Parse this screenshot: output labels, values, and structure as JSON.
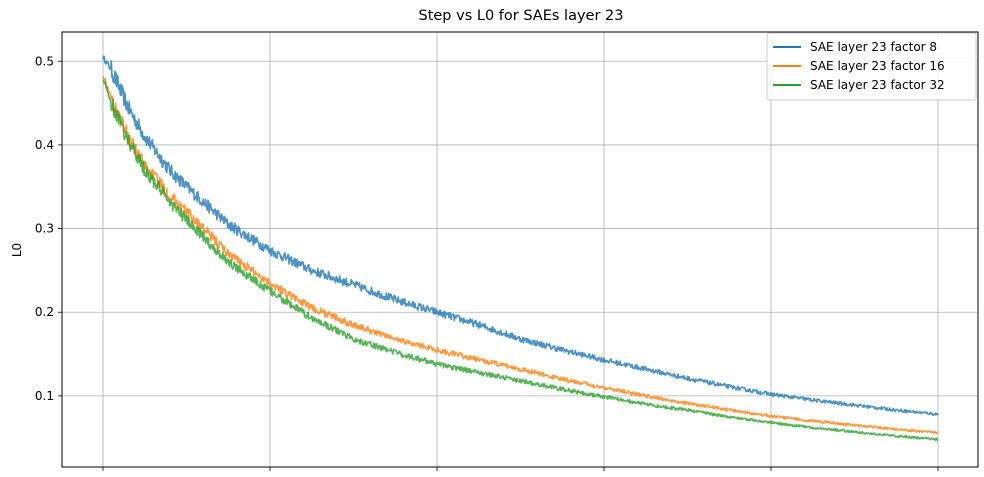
{
  "chart_data": {
    "type": "line",
    "title": "Step vs L0 for SAEs layer 23",
    "xlabel": "",
    "ylabel": "L0",
    "x_range": [
      0,
      1
    ],
    "ylim": [
      0.015,
      0.535
    ],
    "yticks": [
      0.1,
      0.2,
      0.3,
      0.4,
      0.5
    ],
    "ytick_labels": [
      "0.1",
      "0.2",
      "0.3",
      "0.4",
      "0.5"
    ],
    "xticks": [
      0,
      0.2,
      0.4,
      0.6,
      0.8,
      1.0
    ],
    "xtick_labels": [
      "",
      "",
      "",
      "",
      "",
      ""
    ],
    "grid": true,
    "legend_position": "top-right",
    "series": [
      {
        "name": "SAE layer 23 factor 8",
        "color": "#1f77b4",
        "x": [
          0,
          0.01,
          0.03,
          0.05,
          0.08,
          0.1,
          0.15,
          0.2,
          0.25,
          0.3,
          0.35,
          0.4,
          0.45,
          0.5,
          0.55,
          0.6,
          0.65,
          0.7,
          0.75,
          0.8,
          0.85,
          0.9,
          0.95,
          1.0
        ],
        "values": [
          0.505,
          0.49,
          0.445,
          0.41,
          0.37,
          0.35,
          0.305,
          0.274,
          0.25,
          0.233,
          0.215,
          0.2,
          0.185,
          0.168,
          0.155,
          0.143,
          0.132,
          0.121,
          0.111,
          0.102,
          0.095,
          0.089,
          0.083,
          0.078
        ]
      },
      {
        "name": "SAE layer 23 factor 16",
        "color": "#ff7f0e",
        "x": [
          0,
          0.01,
          0.03,
          0.05,
          0.08,
          0.1,
          0.15,
          0.2,
          0.25,
          0.3,
          0.35,
          0.4,
          0.45,
          0.5,
          0.55,
          0.6,
          0.65,
          0.7,
          0.75,
          0.8,
          0.85,
          0.9,
          0.95,
          1.0
        ],
        "values": [
          0.485,
          0.455,
          0.41,
          0.375,
          0.34,
          0.32,
          0.27,
          0.235,
          0.205,
          0.185,
          0.168,
          0.155,
          0.143,
          0.132,
          0.12,
          0.11,
          0.1,
          0.091,
          0.083,
          0.076,
          0.07,
          0.065,
          0.06,
          0.056
        ]
      },
      {
        "name": "SAE layer 23 factor 32",
        "color": "#2ca02c",
        "x": [
          0,
          0.01,
          0.03,
          0.05,
          0.08,
          0.1,
          0.15,
          0.2,
          0.25,
          0.3,
          0.35,
          0.4,
          0.45,
          0.5,
          0.55,
          0.6,
          0.65,
          0.7,
          0.75,
          0.8,
          0.85,
          0.9,
          0.95,
          1.0
        ],
        "values": [
          0.48,
          0.45,
          0.405,
          0.37,
          0.332,
          0.31,
          0.26,
          0.225,
          0.193,
          0.168,
          0.152,
          0.138,
          0.128,
          0.118,
          0.108,
          0.099,
          0.09,
          0.083,
          0.075,
          0.068,
          0.062,
          0.057,
          0.052,
          0.048
        ]
      }
    ]
  }
}
